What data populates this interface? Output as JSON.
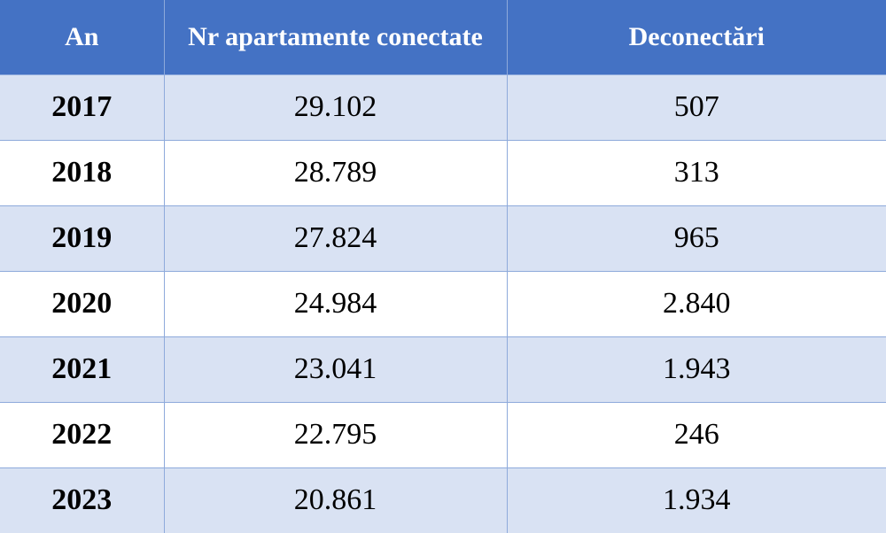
{
  "chart_data": {
    "type": "table",
    "columns": [
      "An",
      "Nr apartamente conectate",
      "Deconectări"
    ],
    "rows": [
      [
        "2017",
        "29.102",
        "507"
      ],
      [
        "2018",
        "28.789",
        "313"
      ],
      [
        "2019",
        "27.824",
        "965"
      ],
      [
        "2020",
        "24.984",
        "2.840"
      ],
      [
        "2021",
        "23.041",
        "1.943"
      ],
      [
        "2022",
        "22.795",
        "246"
      ],
      [
        "2023",
        "20.861",
        "1.934"
      ]
    ],
    "numeric_rows": [
      {
        "year": 2017,
        "connected": 29102,
        "disconnections": 507
      },
      {
        "year": 2018,
        "connected": 28789,
        "disconnections": 313
      },
      {
        "year": 2019,
        "connected": 27824,
        "disconnections": 965
      },
      {
        "year": 2020,
        "connected": 24984,
        "disconnections": 2840
      },
      {
        "year": 2021,
        "connected": 23041,
        "disconnections": 1943
      },
      {
        "year": 2022,
        "connected": 22795,
        "disconnections": 246
      },
      {
        "year": 2023,
        "connected": 20861,
        "disconnections": 1934
      }
    ]
  },
  "colors": {
    "header_bg": "#4472c4",
    "header_text": "#ffffff",
    "band_row_bg": "#d9e2f3",
    "plain_row_bg": "#ffffff",
    "grid_line": "#8eaadb"
  }
}
